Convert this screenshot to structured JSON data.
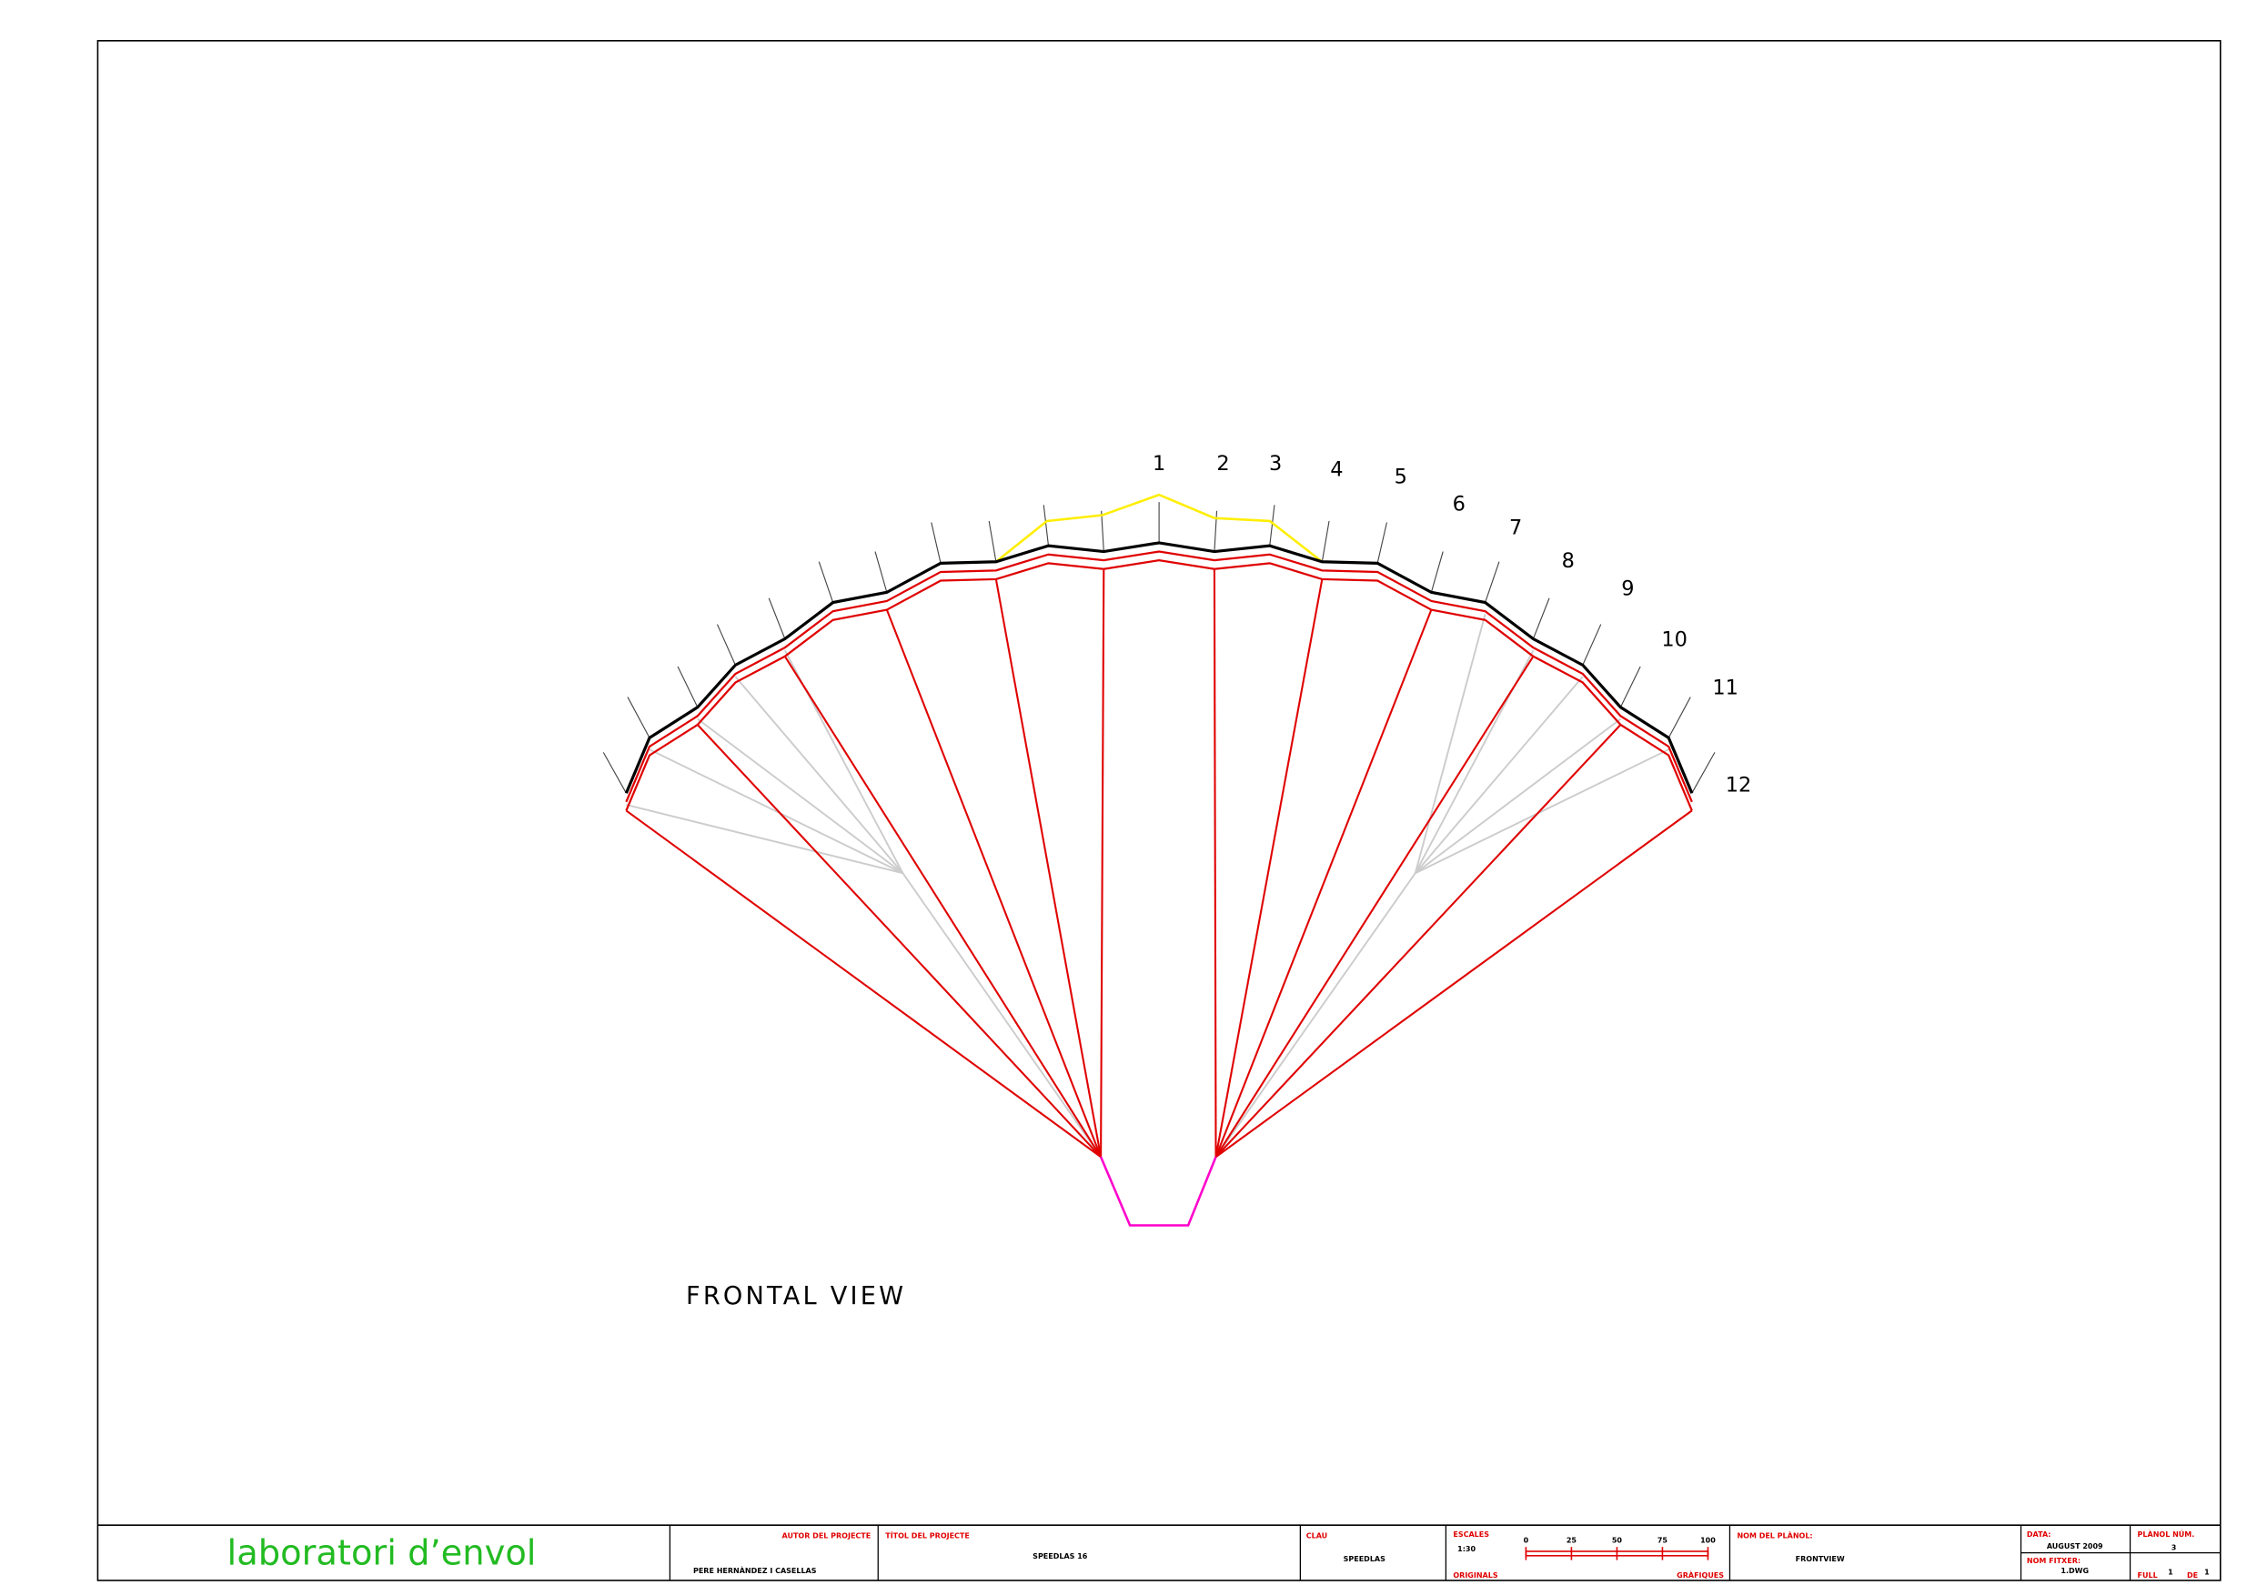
{
  "drawing": {
    "view_title": "FRONTAL VIEW",
    "cell_labels": [
      "1",
      "2",
      "3",
      "4",
      "5",
      "6",
      "7",
      "8",
      "9",
      "10",
      "11",
      "12"
    ]
  },
  "title_block": {
    "logo": "laboratori d’envol",
    "author_label": "AUTOR DEL PROJECTE",
    "author": "PERE HERNÀNDEZ I CASELLAS",
    "project_label": "TÍTOL DEL PROJECTE",
    "project": "SPEEDLAS 16",
    "key_label": "CLAU",
    "key": "SPEEDLAS",
    "scales_label": "ESCALES",
    "scale": "1:30",
    "originals_label": "ORIGINALS",
    "graphic_label": "GRÀFIQUES",
    "scale_ticks": [
      "0",
      "25",
      "50",
      "75",
      "100"
    ],
    "sheet_name_label": "NOM DEL PLÀNOL:",
    "sheet_name": "FRONTVIEW",
    "date_label": "DATA:",
    "date": "AUGUST 2009",
    "file_label": "NOM FITXER:",
    "file": "1.DWG",
    "sheet_number_label": "PLÀNOL NÚM.",
    "sheet_number": "3",
    "page_label": "FULL",
    "page": "1",
    "of_label": "DE",
    "pages": "1"
  }
}
